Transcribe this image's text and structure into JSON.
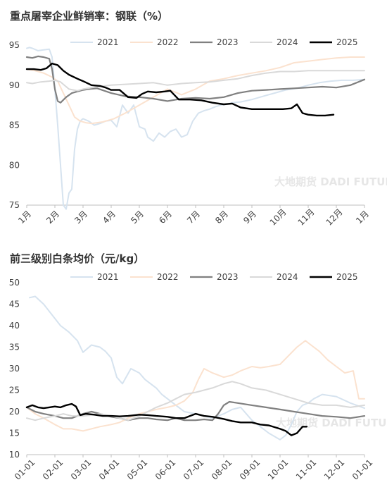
{
  "chart_data": [
    {
      "type": "line",
      "title": "重点屠宰企业鲜销率：钢联（%）",
      "ylim": [
        75,
        95
      ],
      "yticks": [
        75,
        80,
        85,
        90,
        95
      ],
      "xlim": [
        1,
        13
      ],
      "xticks": [
        {
          "x": 1,
          "label": "1月"
        },
        {
          "x": 2,
          "label": "2月"
        },
        {
          "x": 3,
          "label": "3月"
        },
        {
          "x": 4,
          "label": "4月"
        },
        {
          "x": 5,
          "label": "5月"
        },
        {
          "x": 6,
          "label": "6月"
        },
        {
          "x": 7,
          "label": "7月"
        },
        {
          "x": 8,
          "label": "8月"
        },
        {
          "x": 9,
          "label": "9月"
        },
        {
          "x": 10,
          "label": "10月"
        },
        {
          "x": 11,
          "label": "11月"
        },
        {
          "x": 12,
          "label": "12月"
        },
        {
          "x": 13,
          "label": "1月"
        }
      ],
      "legend_position": "top",
      "watermark": "大地期货 DADI FUTURES",
      "series": [
        {
          "name": "2021",
          "color": "#d6e3ef",
          "width": 2,
          "x": [
            1,
            1.1,
            1.2,
            1.4,
            1.6,
            1.8,
            1.9,
            2.0,
            2.1,
            2.3,
            2.4,
            2.5,
            2.6,
            2.7,
            2.8,
            2.9,
            3.0,
            3.2,
            3.4,
            3.6,
            3.8,
            4.0,
            4.2,
            4.4,
            4.6,
            4.8,
            5.0,
            5.2,
            5.3,
            5.5,
            5.7,
            5.9,
            6.1,
            6.3,
            6.5,
            6.7,
            6.9,
            7.1,
            7.3,
            7.5,
            7.7,
            7.9,
            8.1,
            8.3,
            8.6,
            9.0,
            9.4,
            9.8,
            10.2,
            10.6,
            11.0,
            11.4,
            11.8,
            12.2,
            12.6,
            13.0
          ],
          "y": [
            94.6,
            94.7,
            94.6,
            94.3,
            94.4,
            94.5,
            93.5,
            89.5,
            85.0,
            75.0,
            74.5,
            76.5,
            77.0,
            82.0,
            84.5,
            85.5,
            85.8,
            85.5,
            85.0,
            85.2,
            85.5,
            85.6,
            84.8,
            87.5,
            86.5,
            87.5,
            84.8,
            84.5,
            83.5,
            83.0,
            84.0,
            83.5,
            84.2,
            84.5,
            83.5,
            83.8,
            85.5,
            86.5,
            86.8,
            87.0,
            87.3,
            87.5,
            87.6,
            87.8,
            87.9,
            88.2,
            88.6,
            89.0,
            89.4,
            89.6,
            90.0,
            90.3,
            90.5,
            90.6,
            90.6,
            90.7
          ]
        },
        {
          "name": "2022",
          "color": "#fbe2cf",
          "width": 2,
          "x": [
            1,
            1.3,
            1.6,
            1.9,
            2.1,
            2.3,
            2.5,
            2.7,
            2.9,
            3.1,
            3.3,
            3.5,
            3.7,
            3.9,
            4.1,
            4.5,
            5.0,
            5.5,
            6.0,
            6.5,
            7.0,
            7.5,
            8.0,
            8.5,
            9.0,
            9.5,
            10.0,
            10.5,
            11.0,
            11.5,
            12.0,
            12.5,
            13.0
          ],
          "y": [
            92.0,
            91.8,
            91.5,
            91.0,
            90.5,
            89.0,
            87.5,
            86.0,
            85.5,
            85.3,
            85.2,
            85.3,
            85.4,
            85.6,
            85.8,
            86.5,
            87.5,
            88.5,
            89.5,
            88.8,
            89.5,
            90.5,
            90.8,
            91.2,
            91.5,
            91.8,
            92.2,
            92.8,
            93.0,
            93.2,
            93.4,
            93.5,
            93.5
          ]
        },
        {
          "name": "2023",
          "color": "#808080",
          "width": 2.2,
          "x": [
            1,
            1.2,
            1.4,
            1.6,
            1.8,
            1.9,
            2.0,
            2.1,
            2.2,
            2.4,
            2.6,
            2.8,
            3.0,
            3.2,
            3.5,
            4.0,
            4.5,
            5.0,
            5.5,
            6.0,
            6.5,
            7.0,
            7.5,
            8.0,
            8.5,
            9.0,
            9.5,
            10.0,
            10.5,
            11.0,
            11.5,
            12.0,
            12.5,
            13.0
          ],
          "y": [
            93.5,
            93.4,
            93.6,
            93.5,
            93.3,
            92.0,
            89.5,
            88.0,
            87.8,
            88.5,
            89.0,
            89.2,
            89.4,
            89.5,
            89.6,
            89.0,
            88.6,
            88.5,
            88.3,
            88.0,
            88.3,
            88.4,
            88.3,
            88.5,
            89.0,
            89.3,
            89.4,
            89.5,
            89.6,
            89.7,
            89.8,
            89.7,
            90.0,
            90.7
          ]
        },
        {
          "name": "2024",
          "color": "#d9d9d9",
          "width": 2,
          "x": [
            1,
            1.2,
            1.5,
            1.8,
            2.0,
            2.2,
            2.5,
            2.8,
            3.0,
            3.5,
            4.0,
            4.5,
            5.0,
            5.5,
            6.0,
            6.5,
            7.0,
            7.5,
            8.0,
            8.5,
            9.0,
            9.5,
            10.0,
            10.5,
            11.0,
            11.5,
            12.0,
            12.5,
            13.0
          ],
          "y": [
            90.3,
            90.2,
            90.4,
            90.5,
            90.6,
            90.4,
            89.5,
            89.3,
            89.5,
            89.8,
            90.0,
            90.1,
            90.2,
            90.3,
            90.0,
            90.2,
            90.3,
            90.4,
            90.6,
            90.8,
            91.2,
            91.5,
            91.7,
            91.7,
            91.8,
            91.8,
            91.8,
            91.8,
            91.8
          ]
        },
        {
          "name": "2025",
          "color": "#000000",
          "width": 2.4,
          "x": [
            1,
            1.25,
            1.5,
            1.7,
            1.9,
            2.1,
            2.3,
            2.5,
            2.8,
            3.0,
            3.3,
            3.6,
            3.8,
            4.0,
            4.3,
            4.6,
            4.9,
            5.1,
            5.3,
            5.6,
            5.9,
            6.1,
            6.4,
            6.8,
            7.2,
            7.6,
            8.0,
            8.3,
            8.6,
            9.0,
            9.4,
            9.8,
            10.1,
            10.4,
            10.6,
            10.8,
            11.0,
            11.3,
            11.6,
            11.9
          ],
          "y": [
            92.0,
            92.0,
            91.9,
            92.1,
            92.7,
            92.5,
            91.8,
            91.3,
            90.8,
            90.5,
            90.0,
            89.9,
            89.7,
            89.4,
            89.4,
            88.5,
            88.4,
            88.9,
            89.2,
            89.1,
            89.2,
            89.3,
            88.2,
            88.2,
            88.1,
            87.8,
            87.6,
            87.7,
            87.2,
            87.0,
            87.0,
            87.0,
            87.0,
            87.1,
            87.6,
            86.5,
            86.3,
            86.2,
            86.2,
            86.3
          ]
        }
      ]
    },
    {
      "type": "line",
      "title": "前三级别白条均价（元/kg）",
      "ylim": [
        10,
        50
      ],
      "yticks": [
        10,
        15,
        20,
        25,
        30,
        35,
        40,
        45,
        50
      ],
      "xlim": [
        1,
        13
      ],
      "xticks": [
        {
          "x": 1,
          "label": "01-01"
        },
        {
          "x": 2,
          "label": "02-01"
        },
        {
          "x": 3,
          "label": "03-01"
        },
        {
          "x": 4,
          "label": "04-01"
        },
        {
          "x": 5,
          "label": "05-01"
        },
        {
          "x": 6,
          "label": "06-01"
        },
        {
          "x": 7,
          "label": "07-01"
        },
        {
          "x": 8,
          "label": "08-01"
        },
        {
          "x": 9,
          "label": "09-01"
        },
        {
          "x": 10,
          "label": "10-01"
        },
        {
          "x": 11,
          "label": "11-01"
        },
        {
          "x": 12,
          "label": "12-01"
        },
        {
          "x": 13,
          "label": "01-01"
        }
      ],
      "legend_position": "top",
      "watermark": "大地期货 DADI FUTURES",
      "series": [
        {
          "name": "2021",
          "color": "#d6e3ef",
          "width": 2,
          "x": [
            1.1,
            1.3,
            1.6,
            1.9,
            2.2,
            2.5,
            2.8,
            3.0,
            3.3,
            3.6,
            3.8,
            4.0,
            4.2,
            4.4,
            4.7,
            5.0,
            5.2,
            5.4,
            5.6,
            5.8,
            6.0,
            6.3,
            6.6,
            7.0,
            7.3,
            7.6,
            8.0,
            8.3,
            8.6,
            9.0,
            9.3,
            9.6,
            10.0,
            10.2,
            10.4,
            10.6,
            10.8,
            11.0,
            11.2,
            11.5,
            12.0,
            12.5,
            13.0
          ],
          "y": [
            46.5,
            46.8,
            45.0,
            42.5,
            40.0,
            38.5,
            36.5,
            33.8,
            35.5,
            35.0,
            34.0,
            32.5,
            28.0,
            26.5,
            30.0,
            29.0,
            27.5,
            26.5,
            25.5,
            24.0,
            23.0,
            21.5,
            20.0,
            19.5,
            19.0,
            18.5,
            19.5,
            20.5,
            21.0,
            18.0,
            16.5,
            15.0,
            13.5,
            14.5,
            17.0,
            20.0,
            21.5,
            22.0,
            23.0,
            24.0,
            23.5,
            22.0,
            20.8
          ]
        },
        {
          "name": "2022",
          "color": "#fbe2cf",
          "width": 2,
          "x": [
            1,
            1.3,
            1.6,
            2.0,
            2.3,
            2.6,
            3.0,
            3.3,
            3.6,
            4.0,
            4.3,
            4.6,
            5.0,
            5.3,
            5.6,
            6.0,
            6.3,
            6.6,
            6.9,
            7.1,
            7.3,
            7.6,
            8.0,
            8.3,
            8.6,
            9.0,
            9.3,
            9.6,
            10.0,
            10.3,
            10.6,
            10.9,
            11.1,
            11.4,
            11.7,
            12.0,
            12.3,
            12.6,
            12.8,
            13.0
          ],
          "y": [
            21.0,
            19.5,
            18.5,
            17.0,
            16.0,
            16.0,
            15.5,
            16.0,
            16.5,
            17.0,
            17.5,
            18.5,
            19.5,
            20.0,
            20.5,
            21.0,
            21.5,
            22.5,
            24.5,
            27.5,
            30.0,
            29.0,
            28.0,
            28.5,
            29.5,
            30.5,
            30.2,
            30.5,
            31.0,
            33.0,
            35.0,
            36.5,
            35.5,
            34.0,
            32.0,
            30.5,
            29.0,
            29.5,
            23.0,
            23.0
          ]
        },
        {
          "name": "2023",
          "color": "#808080",
          "width": 2.2,
          "x": [
            1,
            1.3,
            1.6,
            2.0,
            2.3,
            2.6,
            3.0,
            3.3,
            3.6,
            4.0,
            4.3,
            4.6,
            5.0,
            5.3,
            5.6,
            6.0,
            6.3,
            6.6,
            7.0,
            7.3,
            7.6,
            7.8,
            8.0,
            8.2,
            8.5,
            9.0,
            9.5,
            10.0,
            10.5,
            11.0,
            11.5,
            12.0,
            12.5,
            13.0
          ],
          "y": [
            21.0,
            20.0,
            19.5,
            19.0,
            18.5,
            18.5,
            19.5,
            20.0,
            19.5,
            18.8,
            18.5,
            18.0,
            18.5,
            18.5,
            18.2,
            18.0,
            18.5,
            18.0,
            18.0,
            18.2,
            18.0,
            19.5,
            21.5,
            22.3,
            22.0,
            21.5,
            21.0,
            20.5,
            20.0,
            19.5,
            19.0,
            18.8,
            18.5,
            19.0
          ]
        },
        {
          "name": "2024",
          "color": "#d9d9d9",
          "width": 2,
          "x": [
            1,
            1.3,
            1.6,
            2.0,
            2.3,
            2.6,
            3.0,
            3.3,
            3.6,
            4.0,
            4.3,
            4.6,
            5.0,
            5.3,
            5.6,
            6.0,
            6.3,
            6.6,
            7.0,
            7.3,
            7.6,
            8.0,
            8.3,
            8.6,
            9.0,
            9.5,
            10.0,
            10.5,
            11.0,
            11.5,
            12.0,
            12.5,
            13.0
          ],
          "y": [
            18.5,
            18.0,
            18.5,
            19.0,
            19.5,
            19.0,
            19.0,
            19.2,
            19.5,
            19.0,
            18.5,
            18.0,
            19.0,
            20.0,
            21.0,
            22.0,
            23.0,
            24.0,
            24.5,
            25.0,
            25.5,
            26.5,
            27.0,
            26.5,
            25.5,
            25.0,
            24.0,
            23.0,
            22.0,
            21.5,
            21.5,
            21.0,
            21.5
          ]
        },
        {
          "name": "2025",
          "color": "#000000",
          "width": 2.4,
          "x": [
            1,
            1.2,
            1.4,
            1.6,
            1.8,
            2.0,
            2.2,
            2.4,
            2.6,
            2.75,
            2.9,
            3.1,
            3.4,
            3.7,
            4.0,
            4.3,
            4.6,
            5.0,
            5.3,
            5.6,
            6.0,
            6.3,
            6.6,
            6.8,
            7.0,
            7.3,
            7.6,
            8.0,
            8.3,
            8.6,
            9.0,
            9.3,
            9.6,
            10.0,
            10.2,
            10.4,
            10.6,
            10.8,
            10.95
          ],
          "y": [
            21.0,
            21.5,
            21.0,
            20.8,
            21.0,
            21.2,
            21.0,
            21.5,
            21.8,
            21.2,
            19.2,
            19.5,
            19.3,
            19.0,
            19.0,
            18.9,
            19.0,
            19.3,
            19.2,
            19.0,
            18.8,
            18.5,
            18.5,
            19.0,
            19.5,
            19.0,
            18.8,
            18.3,
            17.8,
            17.5,
            17.5,
            17.0,
            16.8,
            16.0,
            15.5,
            14.5,
            15.0,
            16.5,
            16.5
          ]
        }
      ]
    }
  ]
}
